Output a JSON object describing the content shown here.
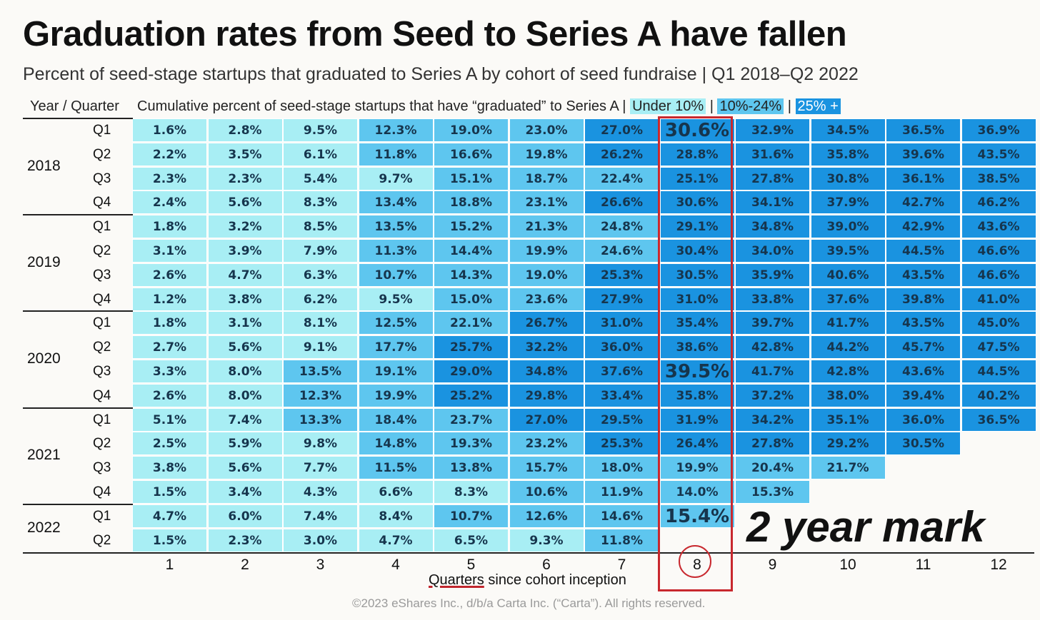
{
  "title": "Graduation rates from Seed to Series A have fallen",
  "subtitle": "Percent of seed-stage startups that graduated to Series A by cohort of seed fundraise | Q1 2018–Q2 2022",
  "header": {
    "year_quarter": "Year / Quarter",
    "cumulative": "Cumulative percent of seed-stage startups that have “graduated” to Series A",
    "sep": "|",
    "legend_under10": "Under 10%",
    "legend_10_24": "10%-24%",
    "legend_25plus": "25% +"
  },
  "annotation": "2 year mark",
  "copyright": "©2023 eShares Inc., d/b/a Carta Inc. (“Carta”). All rights reserved.",
  "x_axis_label_underlined": "Quarters",
  "x_axis_label_rest": " since cohort inception",
  "colors": {
    "under10": "#a8eef4",
    "mid": "#5ec6ef",
    "high": "#1a93e0",
    "highlight_box": "#c8282e"
  },
  "chart_data": {
    "type": "heatmap",
    "title": "Graduation rates from Seed to Series A have fallen",
    "subtitle": "Percent of seed-stage startups that graduated to Series A by cohort of seed fundraise | Q1 2018–Q2 2022",
    "xlabel": "Quarters since cohort inception",
    "ylabel": "Year / Quarter",
    "x": [
      1,
      2,
      3,
      4,
      5,
      6,
      7,
      8,
      9,
      10,
      11,
      12
    ],
    "legend": [
      "Under 10%",
      "10%-24%",
      "25% +"
    ],
    "highlighted_column": 8,
    "emphasized_cells": [
      [
        "2018 Q1",
        8
      ],
      [
        "2020 Q3",
        8
      ],
      [
        "2022 Q1",
        8
      ]
    ],
    "rows": [
      {
        "year": "2018",
        "quarter": "Q1",
        "values": [
          1.6,
          2.8,
          9.5,
          12.3,
          19.0,
          23.0,
          27.0,
          30.6,
          32.9,
          34.5,
          36.5,
          36.9
        ]
      },
      {
        "year": "2018",
        "quarter": "Q2",
        "values": [
          2.2,
          3.5,
          6.1,
          11.8,
          16.6,
          19.8,
          26.2,
          28.8,
          31.6,
          35.8,
          39.6,
          43.5
        ]
      },
      {
        "year": "2018",
        "quarter": "Q3",
        "values": [
          2.3,
          2.3,
          5.4,
          9.7,
          15.1,
          18.7,
          22.4,
          25.1,
          27.8,
          30.8,
          36.1,
          38.5
        ]
      },
      {
        "year": "2018",
        "quarter": "Q4",
        "values": [
          2.4,
          5.6,
          8.3,
          13.4,
          18.8,
          23.1,
          26.6,
          30.6,
          34.1,
          37.9,
          42.7,
          46.2
        ]
      },
      {
        "year": "2019",
        "quarter": "Q1",
        "values": [
          1.8,
          3.2,
          8.5,
          13.5,
          15.2,
          21.3,
          24.8,
          29.1,
          34.8,
          39.0,
          42.9,
          43.6
        ]
      },
      {
        "year": "2019",
        "quarter": "Q2",
        "values": [
          3.1,
          3.9,
          7.9,
          11.3,
          14.4,
          19.9,
          24.6,
          30.4,
          34.0,
          39.5,
          44.5,
          46.6
        ]
      },
      {
        "year": "2019",
        "quarter": "Q3",
        "values": [
          2.6,
          4.7,
          6.3,
          10.7,
          14.3,
          19.0,
          25.3,
          30.5,
          35.9,
          40.6,
          43.5,
          46.6
        ]
      },
      {
        "year": "2019",
        "quarter": "Q4",
        "values": [
          1.2,
          3.8,
          6.2,
          9.5,
          15.0,
          23.6,
          27.9,
          31.0,
          33.8,
          37.6,
          39.8,
          41.0
        ]
      },
      {
        "year": "2020",
        "quarter": "Q1",
        "values": [
          1.8,
          3.1,
          8.1,
          12.5,
          22.1,
          26.7,
          31.0,
          35.4,
          39.7,
          41.7,
          43.5,
          45.0
        ]
      },
      {
        "year": "2020",
        "quarter": "Q2",
        "values": [
          2.7,
          5.6,
          9.1,
          17.7,
          25.7,
          32.2,
          36.0,
          38.6,
          42.8,
          44.2,
          45.7,
          47.5
        ]
      },
      {
        "year": "2020",
        "quarter": "Q3",
        "values": [
          3.3,
          8.0,
          13.5,
          19.1,
          29.0,
          34.8,
          37.6,
          39.5,
          41.7,
          42.8,
          43.6,
          44.5
        ]
      },
      {
        "year": "2020",
        "quarter": "Q4",
        "values": [
          2.6,
          8.0,
          12.3,
          19.9,
          25.2,
          29.8,
          33.4,
          35.8,
          37.2,
          38.0,
          39.4,
          40.2
        ]
      },
      {
        "year": "2021",
        "quarter": "Q1",
        "values": [
          5.1,
          7.4,
          13.3,
          18.4,
          23.7,
          27.0,
          29.5,
          31.9,
          34.2,
          35.1,
          36.0,
          36.5
        ]
      },
      {
        "year": "2021",
        "quarter": "Q2",
        "values": [
          2.5,
          5.9,
          9.8,
          14.8,
          19.3,
          23.2,
          25.3,
          26.4,
          27.8,
          29.2,
          30.5
        ]
      },
      {
        "year": "2021",
        "quarter": "Q3",
        "values": [
          3.8,
          5.6,
          7.7,
          11.5,
          13.8,
          15.7,
          18.0,
          19.9,
          20.4,
          21.7
        ]
      },
      {
        "year": "2021",
        "quarter": "Q4",
        "values": [
          1.5,
          3.4,
          4.3,
          6.6,
          8.3,
          10.6,
          11.9,
          14.0,
          15.3
        ]
      },
      {
        "year": "2022",
        "quarter": "Q1",
        "values": [
          4.7,
          6.0,
          7.4,
          8.4,
          10.7,
          12.6,
          14.6,
          15.4
        ]
      },
      {
        "year": "2022",
        "quarter": "Q2",
        "values": [
          1.5,
          2.3,
          3.0,
          4.7,
          6.5,
          9.3,
          11.8
        ]
      }
    ]
  }
}
